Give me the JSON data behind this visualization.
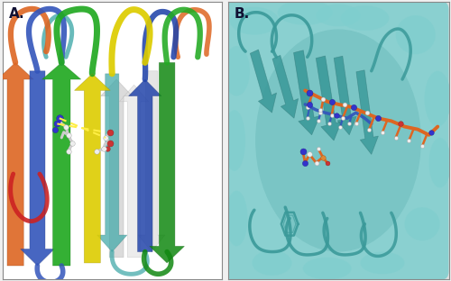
{
  "figure_width": 5.0,
  "figure_height": 3.12,
  "dpi": 100,
  "outer_bg": "#f0f0f0",
  "panel_A_bg": "#ffffff",
  "panel_B_bg": "#e0e0e0",
  "panel_A_label": "A.",
  "panel_B_label": "B.",
  "label_fontsize": 11,
  "label_fontweight": "bold",
  "border_color": "#888888",
  "border_lw": 0.8,
  "colors": {
    "blue": "#3355bb",
    "blue2": "#2244aa",
    "green": "#22aa22",
    "green2": "#118811",
    "orange": "#dd6622",
    "orange2": "#cc5511",
    "yellow": "#ddcc00",
    "red": "#cc2222",
    "teal": "#44aaaa",
    "teal_dark": "#2a8080",
    "teal_surface": "#7ecece",
    "teal_ribbon": "#3a9999",
    "gray": "#aaaaaa",
    "lgray": "#cccccc",
    "white": "#ffffff",
    "atom_blue": "#3333cc",
    "atom_red": "#cc3333",
    "atom_white": "#eeeeee",
    "atom_orange": "#dd8833",
    "hbond": "#ffee44"
  }
}
